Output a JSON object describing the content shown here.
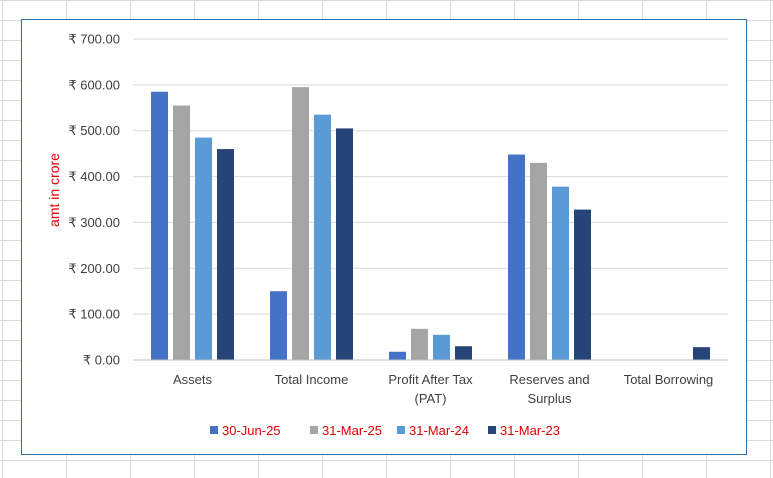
{
  "chart_data": {
    "type": "bar",
    "title": "",
    "xlabel": "",
    "ylabel": "amt in crore",
    "ylim": [
      0,
      700
    ],
    "y_ticks": [
      "₹ 0.00",
      "₹ 100.00",
      "₹ 200.00",
      "₹ 300.00",
      "₹ 400.00",
      "₹ 500.00",
      "₹ 600.00",
      "₹ 700.00"
    ],
    "y_tick_values": [
      0,
      100,
      200,
      300,
      400,
      500,
      600,
      700
    ],
    "grid": true,
    "legend_position": "bottom",
    "categories": [
      [
        "Assets"
      ],
      [
        "Total Income"
      ],
      [
        "Profit After Tax",
        "(PAT)"
      ],
      [
        "Reserves and",
        "Surplus"
      ],
      [
        "Total Borrowing"
      ]
    ],
    "series": [
      {
        "name": "30-Jun-25",
        "color": "#4472c4",
        "values": [
          585,
          150,
          18,
          448,
          0
        ]
      },
      {
        "name": "31-Mar-25",
        "color": "#a5a5a5",
        "values": [
          555,
          595,
          68,
          430,
          0
        ]
      },
      {
        "name": "31-Mar-24",
        "color": "#5b9bd5",
        "values": [
          485,
          535,
          55,
          378,
          0
        ]
      },
      {
        "name": "31-Mar-23",
        "color": "#264478",
        "values": [
          460,
          505,
          30,
          328,
          28
        ]
      }
    ],
    "colors": {
      "gridline": "#d9d9d9",
      "axis": "#bfbfbf",
      "frame": "#2f6fa6",
      "ylabel": "#e00000",
      "legend_text": "#e00000"
    }
  }
}
